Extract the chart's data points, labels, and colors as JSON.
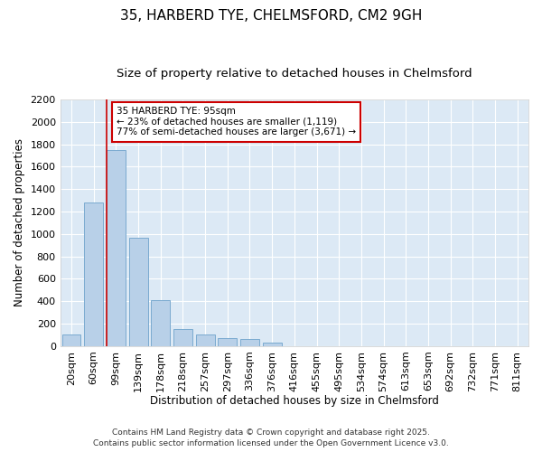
{
  "title_line1": "35, HARBERD TYE, CHELMSFORD, CM2 9GH",
  "title_line2": "Size of property relative to detached houses in Chelmsford",
  "xlabel": "Distribution of detached houses by size in Chelmsford",
  "ylabel": "Number of detached properties",
  "categories": [
    "20sqm",
    "60sqm",
    "99sqm",
    "139sqm",
    "178sqm",
    "218sqm",
    "257sqm",
    "297sqm",
    "336sqm",
    "376sqm",
    "416sqm",
    "455sqm",
    "495sqm",
    "534sqm",
    "574sqm",
    "613sqm",
    "653sqm",
    "692sqm",
    "732sqm",
    "771sqm",
    "811sqm"
  ],
  "values": [
    100,
    1280,
    1750,
    970,
    410,
    155,
    100,
    75,
    65,
    30,
    0,
    0,
    0,
    0,
    0,
    0,
    0,
    0,
    0,
    0,
    0
  ],
  "bar_color": "#b8d0e8",
  "bar_edge_color": "#7aaad0",
  "background_color": "#dce9f5",
  "grid_color": "#ffffff",
  "vline_color": "#cc0000",
  "annotation_text": "35 HARBERD TYE: 95sqm\n← 23% of detached houses are smaller (1,119)\n77% of semi-detached houses are larger (3,671) →",
  "annotation_box_color": "#cc0000",
  "ylim": [
    0,
    2200
  ],
  "yticks": [
    0,
    200,
    400,
    600,
    800,
    1000,
    1200,
    1400,
    1600,
    1800,
    2000,
    2200
  ],
  "footer_line1": "Contains HM Land Registry data © Crown copyright and database right 2025.",
  "footer_line2": "Contains public sector information licensed under the Open Government Licence v3.0.",
  "title_fontsize": 11,
  "subtitle_fontsize": 9.5,
  "axis_label_fontsize": 8.5,
  "tick_fontsize": 8,
  "annotation_fontsize": 7.5,
  "footer_fontsize": 6.5
}
